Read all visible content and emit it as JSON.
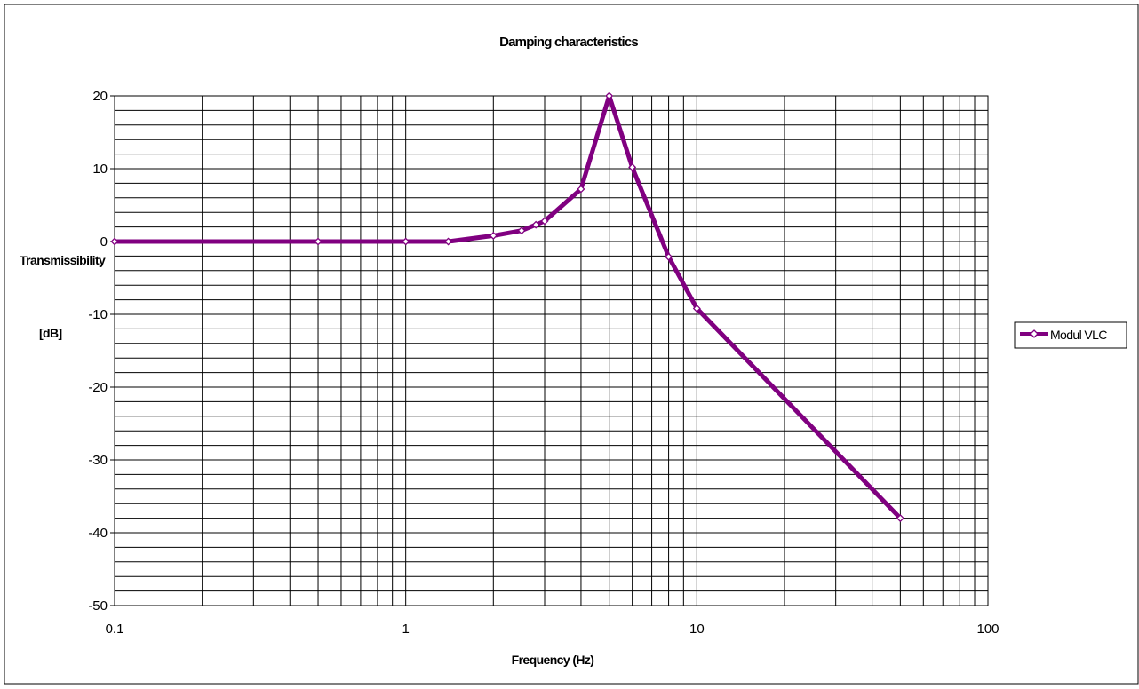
{
  "chart_data": {
    "type": "line",
    "title": "Damping characteristics",
    "xlabel": "Frequency (Hz)",
    "ylabel_line1": "Transmissibility",
    "ylabel_line2": "[dB]",
    "x_scale": "log",
    "xlim": [
      0.1,
      100
    ],
    "ylim": [
      -50,
      20
    ],
    "y_major_step": 10,
    "y_minor_step": 2,
    "x_tick_labels": [
      "0.1",
      "1",
      "10",
      "100"
    ],
    "y_tick_labels": [
      "20",
      "10",
      "0",
      "-10",
      "-20",
      "-30",
      "-40",
      "-50"
    ],
    "grid": true,
    "legend_position": "right",
    "series": [
      {
        "name": "Modul VLC",
        "color": "#800080",
        "marker": "diamond-open",
        "points": [
          [
            0.1,
            0
          ],
          [
            0.5,
            0
          ],
          [
            1.0,
            0
          ],
          [
            1.4,
            0
          ],
          [
            2.0,
            0.8
          ],
          [
            2.5,
            1.5
          ],
          [
            2.8,
            2.3
          ],
          [
            3.0,
            2.8
          ],
          [
            4.0,
            7.2
          ],
          [
            5.0,
            20
          ],
          [
            6.0,
            10.2
          ],
          [
            8.0,
            -2.1
          ],
          [
            10.0,
            -9.2
          ],
          [
            50.0,
            -38
          ]
        ]
      }
    ]
  }
}
